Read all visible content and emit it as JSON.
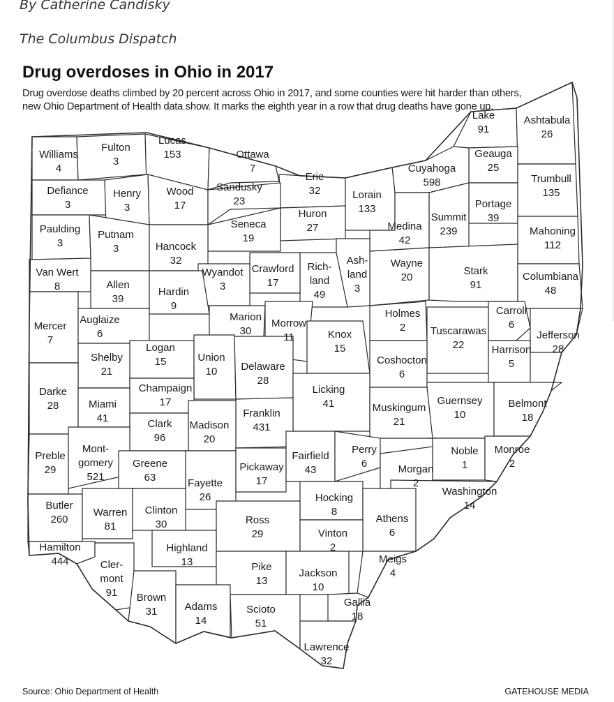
{
  "article": {
    "byline": "By Catherine Candisky",
    "publication": "The Columbus Dispatch"
  },
  "map": {
    "title": "Drug overdoses in Ohio in 2017",
    "subtitle": "Drug overdose deaths climbed by 20 percent across Ohio in 2017, and some counties were hit harder than others, new Ohio Department of Health data show. It marks the eighth year in a row that drug deaths have gone up.",
    "source": "Source: Ohio Department of Health",
    "credit": "GATEHOUSE MEDIA",
    "counties": [
      {
        "id": "williams",
        "name": "Williams",
        "deaths": "4"
      },
      {
        "id": "fulton",
        "name": "Fulton",
        "deaths": "3"
      },
      {
        "id": "lucas",
        "name": "Lucas",
        "deaths": "153"
      },
      {
        "id": "ottawa",
        "name": "Ottawa",
        "deaths": "7"
      },
      {
        "id": "erie",
        "name": "Erie",
        "deaths": "32"
      },
      {
        "id": "lake",
        "name": "Lake",
        "deaths": "91"
      },
      {
        "id": "ashtabula",
        "name": "Ashtabula",
        "deaths": "26"
      },
      {
        "id": "geauga",
        "name": "Geauga",
        "deaths": "25"
      },
      {
        "id": "cuyahoga",
        "name": "Cuyahoga",
        "deaths": "598"
      },
      {
        "id": "defiance",
        "name": "Defiance",
        "deaths": "3"
      },
      {
        "id": "henry",
        "name": "Henry",
        "deaths": "3"
      },
      {
        "id": "wood",
        "name": "Wood",
        "deaths": "17"
      },
      {
        "id": "sandusky",
        "name": "Sandusky",
        "deaths": "23"
      },
      {
        "id": "lorain",
        "name": "Lorain",
        "deaths": "133"
      },
      {
        "id": "trumbull",
        "name": "Trumbull",
        "deaths": "135"
      },
      {
        "id": "portage",
        "name": "Portage",
        "deaths": "39"
      },
      {
        "id": "summit",
        "name": "Summit",
        "deaths": "239"
      },
      {
        "id": "huron",
        "name": "Huron",
        "deaths": "27"
      },
      {
        "id": "medina",
        "name": "Medina",
        "deaths": "42"
      },
      {
        "id": "seneca",
        "name": "Seneca",
        "deaths": "19"
      },
      {
        "id": "paulding",
        "name": "Paulding",
        "deaths": "3"
      },
      {
        "id": "putnam",
        "name": "Putnam",
        "deaths": "3"
      },
      {
        "id": "hancock",
        "name": "Hancock",
        "deaths": "32"
      },
      {
        "id": "mahoning",
        "name": "Mahoning",
        "deaths": "112"
      },
      {
        "id": "wayne",
        "name": "Wayne",
        "deaths": "20"
      },
      {
        "id": "ashland",
        "name": "Ash-|land",
        "deaths": "3"
      },
      {
        "id": "richland",
        "name": "Rich-|land",
        "deaths": "49"
      },
      {
        "id": "crawford",
        "name": "Crawford",
        "deaths": "17"
      },
      {
        "id": "wyandot",
        "name": "Wyandot",
        "deaths": "3"
      },
      {
        "id": "vanwert",
        "name": "Van Wert",
        "deaths": "8"
      },
      {
        "id": "allen",
        "name": "Allen",
        "deaths": "39"
      },
      {
        "id": "hardin",
        "name": "Hardin",
        "deaths": "9"
      },
      {
        "id": "stark",
        "name": "Stark",
        "deaths": "91"
      },
      {
        "id": "columbiana",
        "name": "Columbiana",
        "deaths": "48"
      },
      {
        "id": "holmes",
        "name": "Holmes",
        "deaths": "2"
      },
      {
        "id": "carroll",
        "name": "Carroll",
        "deaths": "6"
      },
      {
        "id": "mercer",
        "name": "Mercer",
        "deaths": "7"
      },
      {
        "id": "auglaize",
        "name": "Auglaize",
        "deaths": "6"
      },
      {
        "id": "marion",
        "name": "Marion",
        "deaths": "30"
      },
      {
        "id": "morrow",
        "name": "Morrow",
        "deaths": "11"
      },
      {
        "id": "knox",
        "name": "Knox",
        "deaths": "15"
      },
      {
        "id": "tuscarawas",
        "name": "Tuscarawas",
        "deaths": "22"
      },
      {
        "id": "jefferson",
        "name": "Jefferson",
        "deaths": "28"
      },
      {
        "id": "harrison",
        "name": "Harrison",
        "deaths": "5"
      },
      {
        "id": "logan",
        "name": "Logan",
        "deaths": "15"
      },
      {
        "id": "shelby",
        "name": "Shelby",
        "deaths": "21"
      },
      {
        "id": "union",
        "name": "Union",
        "deaths": "10"
      },
      {
        "id": "delaware",
        "name": "Delaware",
        "deaths": "28"
      },
      {
        "id": "coshocton",
        "name": "Coshocton",
        "deaths": "6"
      },
      {
        "id": "darke",
        "name": "Darke",
        "deaths": "28"
      },
      {
        "id": "champaign",
        "name": "Champaign",
        "deaths": "17"
      },
      {
        "id": "licking",
        "name": "Licking",
        "deaths": "41"
      },
      {
        "id": "guernsey",
        "name": "Guernsey",
        "deaths": "10"
      },
      {
        "id": "belmont",
        "name": "Belmont",
        "deaths": "18"
      },
      {
        "id": "miami",
        "name": "Miami",
        "deaths": "41"
      },
      {
        "id": "muskingum",
        "name": "Muskingum",
        "deaths": "21"
      },
      {
        "id": "franklin",
        "name": "Franklin",
        "deaths": "431"
      },
      {
        "id": "clark",
        "name": "Clark",
        "deaths": "96"
      },
      {
        "id": "madison",
        "name": "Madison",
        "deaths": "20"
      },
      {
        "id": "preble",
        "name": "Preble",
        "deaths": "29"
      },
      {
        "id": "montgomery",
        "name": "Mont-|gomery",
        "deaths": "521"
      },
      {
        "id": "greene",
        "name": "Greene",
        "deaths": "63"
      },
      {
        "id": "fayette",
        "name": "Fayette",
        "deaths": "26"
      },
      {
        "id": "pickaway",
        "name": "Pickaway",
        "deaths": "17"
      },
      {
        "id": "fairfield",
        "name": "Fairfield",
        "deaths": "43"
      },
      {
        "id": "perry",
        "name": "Perry",
        "deaths": "6"
      },
      {
        "id": "noble",
        "name": "Noble",
        "deaths": "1"
      },
      {
        "id": "monroe",
        "name": "Monroe",
        "deaths": "2"
      },
      {
        "id": "morgan",
        "name": "Morgan",
        "deaths": "2"
      },
      {
        "id": "washington",
        "name": "Washington",
        "deaths": "14"
      },
      {
        "id": "butler",
        "name": "Butler",
        "deaths": "260"
      },
      {
        "id": "warren",
        "name": "Warren",
        "deaths": "81"
      },
      {
        "id": "clinton",
        "name": "Clinton",
        "deaths": "30"
      },
      {
        "id": "hocking",
        "name": "Hocking",
        "deaths": "8"
      },
      {
        "id": "ross",
        "name": "Ross",
        "deaths": "29"
      },
      {
        "id": "athens",
        "name": "Athens",
        "deaths": "6"
      },
      {
        "id": "vinton",
        "name": "Vinton",
        "deaths": "2"
      },
      {
        "id": "hamilton",
        "name": "Hamilton",
        "deaths": "444"
      },
      {
        "id": "highland",
        "name": "Highland",
        "deaths": "13"
      },
      {
        "id": "clermont",
        "name": "Cler-|mont",
        "deaths": "91"
      },
      {
        "id": "pike",
        "name": "Pike",
        "deaths": "13"
      },
      {
        "id": "jackson",
        "name": "Jackson",
        "deaths": "10"
      },
      {
        "id": "meigs",
        "name": "Meigs",
        "deaths": "4"
      },
      {
        "id": "brown",
        "name": "Brown",
        "deaths": "31"
      },
      {
        "id": "adams",
        "name": "Adams",
        "deaths": "14"
      },
      {
        "id": "scioto",
        "name": "Scioto",
        "deaths": "51"
      },
      {
        "id": "gallia",
        "name": "Gallia",
        "deaths": "18"
      },
      {
        "id": "lawrence",
        "name": "Lawrence",
        "deaths": "32"
      }
    ]
  }
}
